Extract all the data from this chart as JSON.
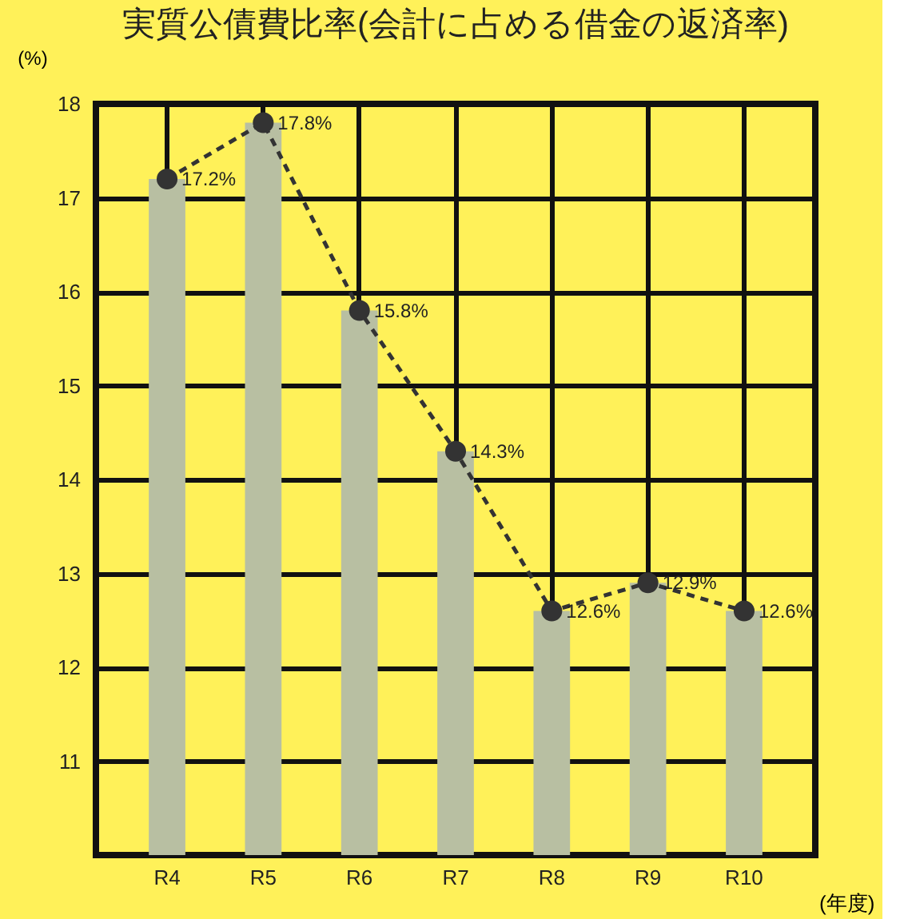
{
  "chart_data": {
    "type": "bar",
    "title": "実質公債費比率(会計に占める借金の返済率)",
    "ylabel": "(%)",
    "xlabel": "(年度)",
    "categories": [
      "R4",
      "R5",
      "R6",
      "R7",
      "R8",
      "R9",
      "R10"
    ],
    "series": [
      {
        "color": "#b8bfa2",
        "values": [
          17.2,
          17.8,
          15.8,
          14.3,
          12.6,
          12.9,
          12.6
        ]
      },
      {
        "type": "line",
        "color": "#333333",
        "marker": "circle",
        "line_style": "dashed",
        "values": [
          17.2,
          17.8,
          15.8,
          14.3,
          12.6,
          12.9,
          12.6
        ],
        "value_labels": [
          "17.2%",
          "17.8%",
          "15.8%",
          "14.3%",
          "12.6%",
          "12.9%",
          "12.6%"
        ]
      }
    ],
    "ylim": [
      10,
      18
    ],
    "yticks": [
      11,
      12,
      13,
      14,
      15,
      16,
      17,
      18
    ],
    "grid": true
  }
}
